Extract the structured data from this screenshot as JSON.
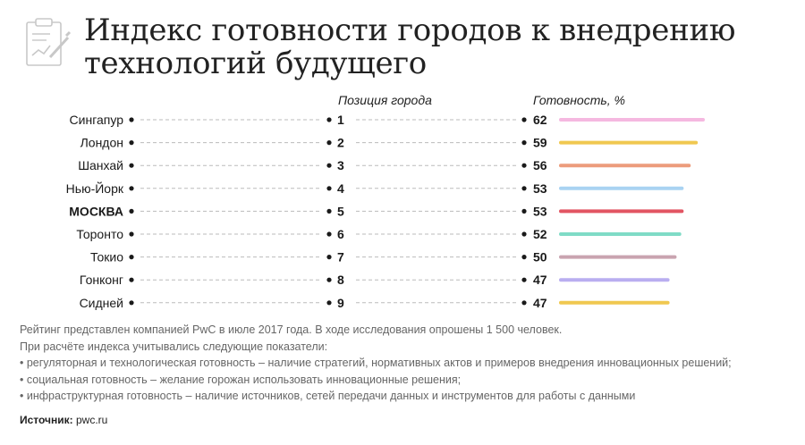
{
  "title": [
    "Индекс готовности городов к внедрению",
    "технологий будущего"
  ],
  "header": {
    "position_label": "Позиция города",
    "readiness_label": "Готовность, %"
  },
  "chart_data": {
    "type": "bar",
    "categories": [
      "Сингапур",
      "Лондон",
      "Шанхай",
      "Нью-Йорк",
      "МОСКВА",
      "Торонто",
      "Токио",
      "Гонконг",
      "Сидней"
    ],
    "positions": [
      "1",
      "2",
      "3",
      "4",
      "5",
      "6",
      "7",
      "8",
      "9"
    ],
    "values": [
      62,
      59,
      56,
      53,
      53,
      52,
      50,
      47,
      47
    ],
    "colors": [
      "#f5b8e0",
      "#f0c850",
      "#ec9c7c",
      "#a9d3f2",
      "#e25462",
      "#7fdbc6",
      "#c9a4b0",
      "#b9aef0",
      "#f0c850"
    ],
    "highlight": "МОСКВА",
    "xlim": [
      0,
      62
    ]
  },
  "notes": [
    "Рейтинг представлен компанией PwC в июле 2017 года. В ходе исследования опрошены 1 500 человек.",
    "При расчёте индекса учитывались следующие показатели:",
    "• регуляторная и технологическая готовность – наличие стратегий, нормативных актов и примеров внедрения инновационных решений;",
    "• социальная готовность – желание горожан использовать инновационные решения;",
    "• инфраструктурная готовность – наличие источников, сетей передачи данных и инструментов для работы с данными"
  ],
  "source": {
    "label": "Источник:",
    "value": "pwc.ru"
  }
}
